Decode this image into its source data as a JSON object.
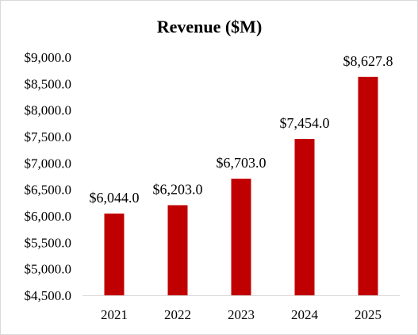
{
  "chart_data": {
    "type": "bar",
    "title": "Revenue ($M)",
    "xlabel": "",
    "ylabel": "",
    "categories": [
      "2021",
      "2022",
      "2023",
      "2024",
      "2025"
    ],
    "values": [
      6044.0,
      6203.0,
      6703.0,
      7454.0,
      8627.8
    ],
    "data_labels": [
      "$6,044.0",
      "$6,203.0",
      "$6,703.0",
      "$7,454.0",
      "$8,627.8"
    ],
    "ylim": [
      4500,
      9000
    ],
    "yticks": [
      4500,
      5000,
      5500,
      6000,
      6500,
      7000,
      7500,
      8000,
      8500,
      9000
    ],
    "ytick_labels": [
      "$4,500.0",
      "$5,000.0",
      "$5,500.0",
      "$6,000.0",
      "$6,500.0",
      "$7,000.0",
      "$7,500.0",
      "$8,000.0",
      "$8,500.0",
      "$9,000.0"
    ],
    "grid": false,
    "legend": "none",
    "colors": {
      "bar": "#c00000",
      "axis": "#d9d9d9",
      "text": "#000000"
    }
  }
}
